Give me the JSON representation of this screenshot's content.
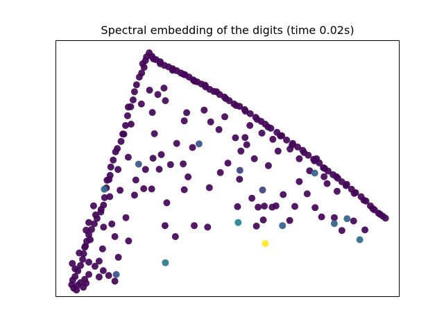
{
  "chart_data": {
    "type": "scatter",
    "title": "Spectral embedding of the digits (time 0.02s)",
    "xlabel": "",
    "ylabel": "",
    "xlim": [
      0,
      1
    ],
    "ylim": [
      0,
      1
    ],
    "grid": false,
    "axis_ticks": false,
    "colormap": "viridis",
    "colors": {
      "low": "#440154",
      "mid": "#31688e",
      "high": "#fde725"
    },
    "points": [
      {
        "x": 0.273,
        "y": 0.951,
        "c": 0.02
      },
      {
        "x": 0.265,
        "y": 0.935,
        "c": 0.02
      },
      {
        "x": 0.254,
        "y": 0.908,
        "c": 0.02
      },
      {
        "x": 0.281,
        "y": 0.937,
        "c": 0.02
      },
      {
        "x": 0.293,
        "y": 0.924,
        "c": 0.02
      },
      {
        "x": 0.305,
        "y": 0.916,
        "c": 0.02
      },
      {
        "x": 0.317,
        "y": 0.902,
        "c": 0.02
      },
      {
        "x": 0.329,
        "y": 0.896,
        "c": 0.02
      },
      {
        "x": 0.341,
        "y": 0.889,
        "c": 0.02
      },
      {
        "x": 0.353,
        "y": 0.881,
        "c": 0.02
      },
      {
        "x": 0.365,
        "y": 0.872,
        "c": 0.02
      },
      {
        "x": 0.377,
        "y": 0.865,
        "c": 0.02
      },
      {
        "x": 0.389,
        "y": 0.856,
        "c": 0.02
      },
      {
        "x": 0.401,
        "y": 0.845,
        "c": 0.02
      },
      {
        "x": 0.413,
        "y": 0.837,
        "c": 0.02
      },
      {
        "x": 0.425,
        "y": 0.829,
        "c": 0.02
      },
      {
        "x": 0.437,
        "y": 0.818,
        "c": 0.02
      },
      {
        "x": 0.449,
        "y": 0.808,
        "c": 0.02
      },
      {
        "x": 0.461,
        "y": 0.8,
        "c": 0.02
      },
      {
        "x": 0.478,
        "y": 0.788,
        "c": 0.02
      },
      {
        "x": 0.492,
        "y": 0.778,
        "c": 0.02
      },
      {
        "x": 0.506,
        "y": 0.764,
        "c": 0.02
      },
      {
        "x": 0.52,
        "y": 0.751,
        "c": 0.02
      },
      {
        "x": 0.536,
        "y": 0.742,
        "c": 0.02
      },
      {
        "x": 0.551,
        "y": 0.729,
        "c": 0.02
      },
      {
        "x": 0.567,
        "y": 0.713,
        "c": 0.02
      },
      {
        "x": 0.583,
        "y": 0.699,
        "c": 0.02
      },
      {
        "x": 0.599,
        "y": 0.683,
        "c": 0.02
      },
      {
        "x": 0.611,
        "y": 0.672,
        "c": 0.02
      },
      {
        "x": 0.627,
        "y": 0.656,
        "c": 0.02
      },
      {
        "x": 0.645,
        "y": 0.64,
        "c": 0.02
      },
      {
        "x": 0.659,
        "y": 0.627,
        "c": 0.02
      },
      {
        "x": 0.673,
        "y": 0.61,
        "c": 0.02
      },
      {
        "x": 0.691,
        "y": 0.597,
        "c": 0.02
      },
      {
        "x": 0.705,
        "y": 0.583,
        "c": 0.02
      },
      {
        "x": 0.72,
        "y": 0.57,
        "c": 0.02
      },
      {
        "x": 0.736,
        "y": 0.551,
        "c": 0.02
      },
      {
        "x": 0.752,
        "y": 0.535,
        "c": 0.02
      },
      {
        "x": 0.768,
        "y": 0.521,
        "c": 0.02
      },
      {
        "x": 0.78,
        "y": 0.502,
        "c": 0.02
      },
      {
        "x": 0.794,
        "y": 0.489,
        "c": 0.02
      },
      {
        "x": 0.808,
        "y": 0.475,
        "c": 0.02
      },
      {
        "x": 0.822,
        "y": 0.461,
        "c": 0.02
      },
      {
        "x": 0.834,
        "y": 0.447,
        "c": 0.02
      },
      {
        "x": 0.846,
        "y": 0.432,
        "c": 0.02
      },
      {
        "x": 0.862,
        "y": 0.418,
        "c": 0.02
      },
      {
        "x": 0.874,
        "y": 0.405,
        "c": 0.02
      },
      {
        "x": 0.89,
        "y": 0.389,
        "c": 0.02
      },
      {
        "x": 0.904,
        "y": 0.372,
        "c": 0.02
      },
      {
        "x": 0.917,
        "y": 0.353,
        "c": 0.02
      },
      {
        "x": 0.929,
        "y": 0.337,
        "c": 0.02
      },
      {
        "x": 0.941,
        "y": 0.324,
        "c": 0.02
      },
      {
        "x": 0.953,
        "y": 0.313,
        "c": 0.02
      },
      {
        "x": 0.961,
        "y": 0.305,
        "c": 0.02
      },
      {
        "x": 0.945,
        "y": 0.32,
        "c": 0.02
      },
      {
        "x": 0.924,
        "y": 0.342,
        "c": 0.02
      },
      {
        "x": 0.898,
        "y": 0.375,
        "c": 0.02
      },
      {
        "x": 0.87,
        "y": 0.402,
        "c": 0.02
      },
      {
        "x": 0.848,
        "y": 0.437,
        "c": 0.02
      },
      {
        "x": 0.818,
        "y": 0.467,
        "c": 0.02
      },
      {
        "x": 0.784,
        "y": 0.499,
        "c": 0.02
      },
      {
        "x": 0.754,
        "y": 0.529,
        "c": 0.02
      },
      {
        "x": 0.724,
        "y": 0.561,
        "c": 0.02
      },
      {
        "x": 0.689,
        "y": 0.591,
        "c": 0.02
      },
      {
        "x": 0.655,
        "y": 0.626,
        "c": 0.02
      },
      {
        "x": 0.619,
        "y": 0.661,
        "c": 0.02
      },
      {
        "x": 0.587,
        "y": 0.691,
        "c": 0.02
      },
      {
        "x": 0.553,
        "y": 0.723,
        "c": 0.02
      },
      {
        "x": 0.526,
        "y": 0.745,
        "c": 0.02
      },
      {
        "x": 0.496,
        "y": 0.772,
        "c": 0.02
      },
      {
        "x": 0.469,
        "y": 0.799,
        "c": 0.02
      },
      {
        "x": 0.436,
        "y": 0.824,
        "c": 0.02
      },
      {
        "x": 0.405,
        "y": 0.84,
        "c": 0.02
      },
      {
        "x": 0.373,
        "y": 0.867,
        "c": 0.02
      },
      {
        "x": 0.341,
        "y": 0.883,
        "c": 0.02
      },
      {
        "x": 0.305,
        "y": 0.908,
        "c": 0.02
      },
      {
        "x": 0.285,
        "y": 0.927,
        "c": 0.02
      },
      {
        "x": 0.262,
        "y": 0.921,
        "c": 0.02
      },
      {
        "x": 0.258,
        "y": 0.894,
        "c": 0.02
      },
      {
        "x": 0.251,
        "y": 0.872,
        "c": 0.02
      },
      {
        "x": 0.244,
        "y": 0.856,
        "c": 0.02
      },
      {
        "x": 0.236,
        "y": 0.826,
        "c": 0.02
      },
      {
        "x": 0.23,
        "y": 0.799,
        "c": 0.02
      },
      {
        "x": 0.226,
        "y": 0.767,
        "c": 0.02
      },
      {
        "x": 0.219,
        "y": 0.74,
        "c": 0.02
      },
      {
        "x": 0.21,
        "y": 0.705,
        "c": 0.02
      },
      {
        "x": 0.204,
        "y": 0.667,
        "c": 0.02
      },
      {
        "x": 0.196,
        "y": 0.634,
        "c": 0.02
      },
      {
        "x": 0.191,
        "y": 0.605,
        "c": 0.02
      },
      {
        "x": 0.18,
        "y": 0.577,
        "c": 0.02
      },
      {
        "x": 0.175,
        "y": 0.564,
        "c": 0.02
      },
      {
        "x": 0.168,
        "y": 0.532,
        "c": 0.02
      },
      {
        "x": 0.161,
        "y": 0.505,
        "c": 0.02
      },
      {
        "x": 0.159,
        "y": 0.472,
        "c": 0.02
      },
      {
        "x": 0.156,
        "y": 0.456,
        "c": 0.02
      },
      {
        "x": 0.148,
        "y": 0.423,
        "c": 0.02
      },
      {
        "x": 0.143,
        "y": 0.385,
        "c": 0.02
      },
      {
        "x": 0.14,
        "y": 0.356,
        "c": 0.02
      },
      {
        "x": 0.132,
        "y": 0.329,
        "c": 0.02
      },
      {
        "x": 0.121,
        "y": 0.304,
        "c": 0.02
      },
      {
        "x": 0.113,
        "y": 0.283,
        "c": 0.02
      },
      {
        "x": 0.105,
        "y": 0.261,
        "c": 0.02
      },
      {
        "x": 0.097,
        "y": 0.24,
        "c": 0.02
      },
      {
        "x": 0.091,
        "y": 0.215,
        "c": 0.02
      },
      {
        "x": 0.087,
        "y": 0.196,
        "c": 0.02
      },
      {
        "x": 0.082,
        "y": 0.166,
        "c": 0.02
      },
      {
        "x": 0.079,
        "y": 0.144,
        "c": 0.02
      },
      {
        "x": 0.073,
        "y": 0.12,
        "c": 0.02
      },
      {
        "x": 0.065,
        "y": 0.099,
        "c": 0.02
      },
      {
        "x": 0.057,
        "y": 0.077,
        "c": 0.02
      },
      {
        "x": 0.05,
        "y": 0.063,
        "c": 0.02
      },
      {
        "x": 0.047,
        "y": 0.045,
        "c": 0.02
      },
      {
        "x": 0.053,
        "y": 0.032,
        "c": 0.02
      },
      {
        "x": 0.061,
        "y": 0.024,
        "c": 0.02
      },
      {
        "x": 0.073,
        "y": 0.053,
        "c": 0.02
      },
      {
        "x": 0.085,
        "y": 0.066,
        "c": 0.02
      },
      {
        "x": 0.097,
        "y": 0.085,
        "c": 0.02
      },
      {
        "x": 0.065,
        "y": 0.043,
        "c": 0.02
      },
      {
        "x": 0.081,
        "y": 0.035,
        "c": 0.02
      },
      {
        "x": 0.089,
        "y": 0.051,
        "c": 0.02
      },
      {
        "x": 0.057,
        "y": 0.107,
        "c": 0.02
      },
      {
        "x": 0.049,
        "y": 0.128,
        "c": 0.02
      },
      {
        "x": 0.069,
        "y": 0.169,
        "c": 0.02
      },
      {
        "x": 0.085,
        "y": 0.191,
        "c": 0.02
      },
      {
        "x": 0.101,
        "y": 0.221,
        "c": 0.02
      },
      {
        "x": 0.089,
        "y": 0.258,
        "c": 0.02
      },
      {
        "x": 0.097,
        "y": 0.288,
        "c": 0.02
      },
      {
        "x": 0.117,
        "y": 0.318,
        "c": 0.02
      },
      {
        "x": 0.133,
        "y": 0.339,
        "c": 0.02
      },
      {
        "x": 0.111,
        "y": 0.353,
        "c": 0.02
      },
      {
        "x": 0.298,
        "y": 0.788,
        "c": 0.02
      },
      {
        "x": 0.316,
        "y": 0.813,
        "c": 0.02
      },
      {
        "x": 0.32,
        "y": 0.764,
        "c": 0.02
      },
      {
        "x": 0.274,
        "y": 0.805,
        "c": 0.02
      },
      {
        "x": 0.25,
        "y": 0.751,
        "c": 0.02
      },
      {
        "x": 0.282,
        "y": 0.718,
        "c": 0.02
      },
      {
        "x": 0.212,
        "y": 0.739,
        "c": 0.02
      },
      {
        "x": 0.22,
        "y": 0.672,
        "c": 0.02
      },
      {
        "x": 0.199,
        "y": 0.633,
        "c": 0.02
      },
      {
        "x": 0.288,
        "y": 0.635,
        "c": 0.02
      },
      {
        "x": 0.212,
        "y": 0.543,
        "c": 0.02
      },
      {
        "x": 0.182,
        "y": 0.495,
        "c": 0.02
      },
      {
        "x": 0.188,
        "y": 0.414,
        "c": 0.02
      },
      {
        "x": 0.205,
        "y": 0.307,
        "c": 0.02
      },
      {
        "x": 0.15,
        "y": 0.453,
        "c": 0.02
      },
      {
        "x": 0.158,
        "y": 0.389,
        "c": 0.02
      },
      {
        "x": 0.164,
        "y": 0.282,
        "c": 0.02
      },
      {
        "x": 0.14,
        "y": 0.27,
        "c": 0.02
      },
      {
        "x": 0.173,
        "y": 0.233,
        "c": 0.02
      },
      {
        "x": 0.213,
        "y": 0.216,
        "c": 0.02
      },
      {
        "x": 0.137,
        "y": 0.185,
        "c": 0.02
      },
      {
        "x": 0.127,
        "y": 0.137,
        "c": 0.02
      },
      {
        "x": 0.097,
        "y": 0.133,
        "c": 0.02
      },
      {
        "x": 0.115,
        "y": 0.117,
        "c": 0.02
      },
      {
        "x": 0.139,
        "y": 0.1,
        "c": 0.02
      },
      {
        "x": 0.183,
        "y": 0.152,
        "c": 0.02
      },
      {
        "x": 0.127,
        "y": 0.075,
        "c": 0.02
      },
      {
        "x": 0.173,
        "y": 0.059,
        "c": 0.02
      },
      {
        "x": 0.155,
        "y": 0.081,
        "c": 0.02
      },
      {
        "x": 0.23,
        "y": 0.395,
        "c": 0.02
      },
      {
        "x": 0.262,
        "y": 0.495,
        "c": 0.02
      },
      {
        "x": 0.28,
        "y": 0.419,
        "c": 0.02
      },
      {
        "x": 0.302,
        "y": 0.496,
        "c": 0.02
      },
      {
        "x": 0.353,
        "y": 0.597,
        "c": 0.02
      },
      {
        "x": 0.399,
        "y": 0.581,
        "c": 0.02
      },
      {
        "x": 0.372,
        "y": 0.517,
        "c": 0.02
      },
      {
        "x": 0.386,
        "y": 0.466,
        "c": 0.02
      },
      {
        "x": 0.324,
        "y": 0.365,
        "c": 0.02
      },
      {
        "x": 0.335,
        "y": 0.514,
        "c": 0.02
      },
      {
        "x": 0.308,
        "y": 0.553,
        "c": 0.02
      },
      {
        "x": 0.234,
        "y": 0.454,
        "c": 0.02
      },
      {
        "x": 0.257,
        "y": 0.42,
        "c": 0.02
      },
      {
        "x": 0.284,
        "y": 0.539,
        "c": 0.02
      },
      {
        "x": 0.375,
        "y": 0.685,
        "c": 0.02
      },
      {
        "x": 0.382,
        "y": 0.717,
        "c": 0.02
      },
      {
        "x": 0.433,
        "y": 0.727,
        "c": 0.02
      },
      {
        "x": 0.452,
        "y": 0.681,
        "c": 0.02
      },
      {
        "x": 0.476,
        "y": 0.651,
        "c": 0.02
      },
      {
        "x": 0.493,
        "y": 0.701,
        "c": 0.02
      },
      {
        "x": 0.524,
        "y": 0.619,
        "c": 0.02
      },
      {
        "x": 0.552,
        "y": 0.62,
        "c": 0.02
      },
      {
        "x": 0.566,
        "y": 0.667,
        "c": 0.02
      },
      {
        "x": 0.601,
        "y": 0.637,
        "c": 0.02
      },
      {
        "x": 0.633,
        "y": 0.613,
        "c": 0.02
      },
      {
        "x": 0.648,
        "y": 0.567,
        "c": 0.02
      },
      {
        "x": 0.557,
        "y": 0.592,
        "c": 0.02
      },
      {
        "x": 0.502,
        "y": 0.52,
        "c": 0.02
      },
      {
        "x": 0.48,
        "y": 0.483,
        "c": 0.02
      },
      {
        "x": 0.448,
        "y": 0.424,
        "c": 0.02
      },
      {
        "x": 0.536,
        "y": 0.457,
        "c": 0.02
      },
      {
        "x": 0.54,
        "y": 0.567,
        "c": 0.02
      },
      {
        "x": 0.579,
        "y": 0.537,
        "c": 0.02
      },
      {
        "x": 0.62,
        "y": 0.51,
        "c": 0.02
      },
      {
        "x": 0.683,
        "y": 0.575,
        "c": 0.02
      },
      {
        "x": 0.71,
        "y": 0.537,
        "c": 0.02
      },
      {
        "x": 0.76,
        "y": 0.537,
        "c": 0.02
      },
      {
        "x": 0.782,
        "y": 0.467,
        "c": 0.02
      },
      {
        "x": 0.733,
        "y": 0.4,
        "c": 0.02
      },
      {
        "x": 0.697,
        "y": 0.351,
        "c": 0.02
      },
      {
        "x": 0.682,
        "y": 0.296,
        "c": 0.02
      },
      {
        "x": 0.59,
        "y": 0.348,
        "c": 0.02
      },
      {
        "x": 0.631,
        "y": 0.348,
        "c": 0.02
      },
      {
        "x": 0.663,
        "y": 0.397,
        "c": 0.02
      },
      {
        "x": 0.756,
        "y": 0.346,
        "c": 0.02
      },
      {
        "x": 0.812,
        "y": 0.307,
        "c": 0.02
      },
      {
        "x": 0.834,
        "y": 0.257,
        "c": 0.02
      },
      {
        "x": 0.868,
        "y": 0.294,
        "c": 0.02
      },
      {
        "x": 0.901,
        "y": 0.259,
        "c": 0.02
      },
      {
        "x": 0.775,
        "y": 0.31,
        "c": 0.02
      },
      {
        "x": 0.605,
        "y": 0.298,
        "c": 0.02
      },
      {
        "x": 0.404,
        "y": 0.276,
        "c": 0.02
      },
      {
        "x": 0.375,
        "y": 0.416,
        "c": 0.02
      },
      {
        "x": 0.319,
        "y": 0.276,
        "c": 0.02
      },
      {
        "x": 0.349,
        "y": 0.233,
        "c": 0.02
      },
      {
        "x": 0.443,
        "y": 0.27,
        "c": 0.02
      },
      {
        "x": 0.53,
        "y": 0.35,
        "c": 0.02
      },
      {
        "x": 0.572,
        "y": 0.383,
        "c": 0.02
      },
      {
        "x": 0.585,
        "y": 0.274,
        "c": 0.02
      },
      {
        "x": 0.608,
        "y": 0.352,
        "c": 0.02
      },
      {
        "x": 0.642,
        "y": 0.353,
        "c": 0.02
      },
      {
        "x": 0.71,
        "y": 0.448,
        "c": 0.02
      },
      {
        "x": 0.74,
        "y": 0.49,
        "c": 0.02
      },
      {
        "x": 0.791,
        "y": 0.44,
        "c": 0.02
      },
      {
        "x": 0.82,
        "y": 0.41,
        "c": 0.02
      },
      {
        "x": 0.242,
        "y": 0.516,
        "c": 0.25
      },
      {
        "x": 0.418,
        "y": 0.595,
        "c": 0.25
      },
      {
        "x": 0.537,
        "y": 0.492,
        "c": 0.2
      },
      {
        "x": 0.603,
        "y": 0.415,
        "c": 0.2
      },
      {
        "x": 0.661,
        "y": 0.276,
        "c": 0.3
      },
      {
        "x": 0.755,
        "y": 0.481,
        "c": 0.3
      },
      {
        "x": 0.812,
        "y": 0.284,
        "c": 0.3
      },
      {
        "x": 0.849,
        "y": 0.303,
        "c": 0.3
      },
      {
        "x": 0.177,
        "y": 0.085,
        "c": 0.25
      },
      {
        "x": 0.142,
        "y": 0.418,
        "c": 0.35
      },
      {
        "x": 0.532,
        "y": 0.288,
        "c": 0.45
      },
      {
        "x": 0.32,
        "y": 0.131,
        "c": 0.4
      },
      {
        "x": 0.886,
        "y": 0.221,
        "c": 0.35
      },
      {
        "x": 0.611,
        "y": 0.206,
        "c": 1.0
      }
    ]
  }
}
